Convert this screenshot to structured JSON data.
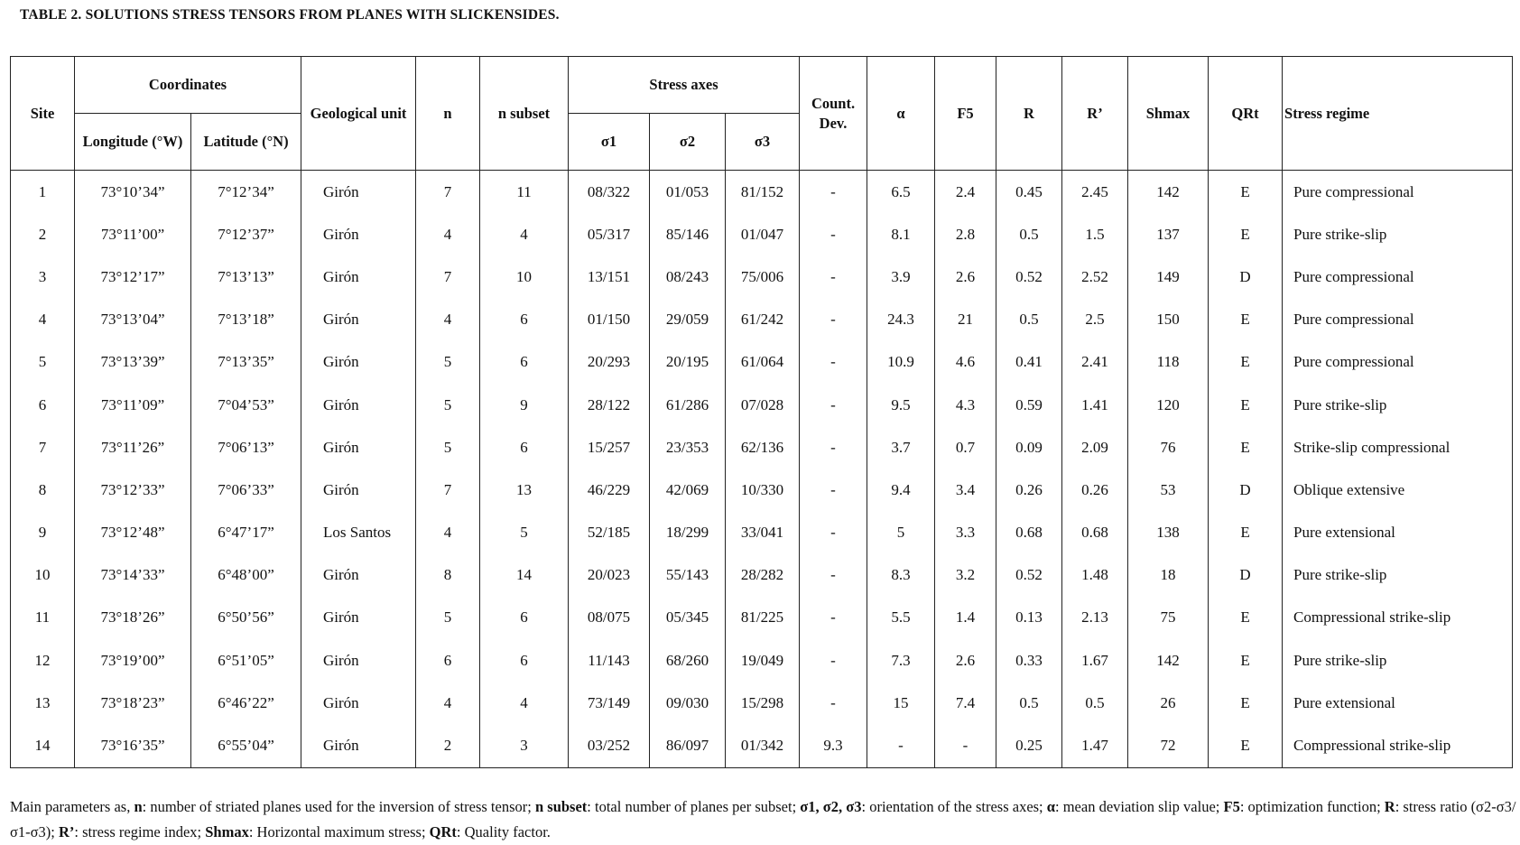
{
  "title": "TABLE 2. SOLUTIONS STRESS TENSORS FROM PLANES WITH SLICKENSIDES.",
  "table": {
    "header": {
      "site": "Site",
      "coordinates": "Coordinates",
      "longitude": "Longitude (°W)",
      "latitude": "Latitude (°N)",
      "geological_unit": "Geological unit",
      "n": "n",
      "n_subset": "n subset",
      "stress_axes": "Stress axes",
      "sigma1": "σ1",
      "sigma2": "σ2",
      "sigma3": "σ3",
      "count_dev": "Count. Dev.",
      "alpha": "α",
      "f5": "F5",
      "r": "R",
      "r_prime": "R’",
      "shmax": "Shmax",
      "qrt": "QRt",
      "stress_regime": "Stress regime"
    },
    "rows": [
      [
        "1",
        "73°10’34”",
        "7°12’34”",
        "Girón",
        "7",
        "11",
        "08/322",
        "01/053",
        "81/152",
        "-",
        "6.5",
        "2.4",
        "0.45",
        "2.45",
        "142",
        "E",
        "Pure compressional"
      ],
      [
        "2",
        "73°11’00”",
        "7°12’37”",
        "Girón",
        "4",
        "4",
        "05/317",
        "85/146",
        "01/047",
        "-",
        "8.1",
        "2.8",
        "0.5",
        "1.5",
        "137",
        "E",
        "Pure strike-slip"
      ],
      [
        "3",
        "73°12’17”",
        "7°13’13”",
        "Girón",
        "7",
        "10",
        "13/151",
        "08/243",
        "75/006",
        "-",
        "3.9",
        "2.6",
        "0.52",
        "2.52",
        "149",
        "D",
        "Pure compressional"
      ],
      [
        "4",
        "73°13’04”",
        "7°13’18”",
        "Girón",
        "4",
        "6",
        "01/150",
        "29/059",
        "61/242",
        "-",
        "24.3",
        "21",
        "0.5",
        "2.5",
        "150",
        "E",
        "Pure compressional"
      ],
      [
        "5",
        "73°13’39”",
        "7°13’35”",
        "Girón",
        "5",
        "6",
        "20/293",
        "20/195",
        "61/064",
        "-",
        "10.9",
        "4.6",
        "0.41",
        "2.41",
        "118",
        "E",
        "Pure compressional"
      ],
      [
        "6",
        "73°11’09”",
        "7°04’53”",
        "Girón",
        "5",
        "9",
        "28/122",
        "61/286",
        "07/028",
        "-",
        "9.5",
        "4.3",
        "0.59",
        "1.41",
        "120",
        "E",
        "Pure strike-slip"
      ],
      [
        "7",
        "73°11’26”",
        "7°06’13”",
        "Girón",
        "5",
        "6",
        "15/257",
        "23/353",
        "62/136",
        "-",
        "3.7",
        "0.7",
        "0.09",
        "2.09",
        "76",
        "E",
        "Strike-slip compressional"
      ],
      [
        "8",
        "73°12’33”",
        "7°06’33”",
        "Girón",
        "7",
        "13",
        "46/229",
        "42/069",
        "10/330",
        "-",
        "9.4",
        "3.4",
        "0.26",
        "0.26",
        "53",
        "D",
        "Oblique extensive"
      ],
      [
        "9",
        "73°12’48”",
        "6°47’17”",
        "Los Santos",
        "4",
        "5",
        "52/185",
        "18/299",
        "33/041",
        "-",
        "5",
        "3.3",
        "0.68",
        "0.68",
        "138",
        "E",
        "Pure extensional"
      ],
      [
        "10",
        "73°14’33”",
        "6°48’00”",
        "Girón",
        "8",
        "14",
        "20/023",
        "55/143",
        "28/282",
        "-",
        "8.3",
        "3.2",
        "0.52",
        "1.48",
        "18",
        "D",
        "Pure strike-slip"
      ],
      [
        "11",
        "73°18’26”",
        "6°50’56”",
        "Girón",
        "5",
        "6",
        "08/075",
        "05/345",
        "81/225",
        "-",
        "5.5",
        "1.4",
        "0.13",
        "2.13",
        "75",
        "E",
        "Compressional strike-slip"
      ],
      [
        "12",
        "73°19’00”",
        "6°51’05”",
        "Girón",
        "6",
        "6",
        "11/143",
        "68/260",
        "19/049",
        "-",
        "7.3",
        "2.6",
        "0.33",
        "1.67",
        "142",
        "E",
        "Pure strike-slip"
      ],
      [
        "13",
        "73°18’23”",
        "6°46’22”",
        "Girón",
        "4",
        "4",
        "73/149",
        "09/030",
        "15/298",
        "-",
        "15",
        "7.4",
        "0.5",
        "0.5",
        "26",
        "E",
        "Pure extensional"
      ],
      [
        "14",
        "73°16’35”",
        "6°55’04”",
        "Girón",
        "2",
        "3",
        "03/252",
        "86/097",
        "01/342",
        "9.3",
        "-",
        "-",
        "0.25",
        "1.47",
        "72",
        "E",
        "Compressional strike-slip"
      ]
    ]
  },
  "footnote": {
    "intro": "Main parameters as,",
    "items": [
      {
        "term": "n",
        "definition": ": number of striated planes used for the inversion of stress tensor;"
      },
      {
        "term": "n subset",
        "definition": ": total number of planes per subset;"
      },
      {
        "term": "σ1, σ2, σ3",
        "definition": ": orientation of the stress axes;"
      },
      {
        "term": "α",
        "definition": ": mean deviation slip value;"
      },
      {
        "term": "F5",
        "definition": ": optimization function;"
      },
      {
        "term": "R",
        "definition": ": stress ratio (σ2-σ3/σ1-σ3);"
      },
      {
        "term": "R’",
        "definition": ": stress regime index;"
      },
      {
        "term": "Shmax",
        "definition": ": Horizontal maximum stress;"
      },
      {
        "term": "QRt",
        "definition": ": Quality factor."
      }
    ]
  }
}
